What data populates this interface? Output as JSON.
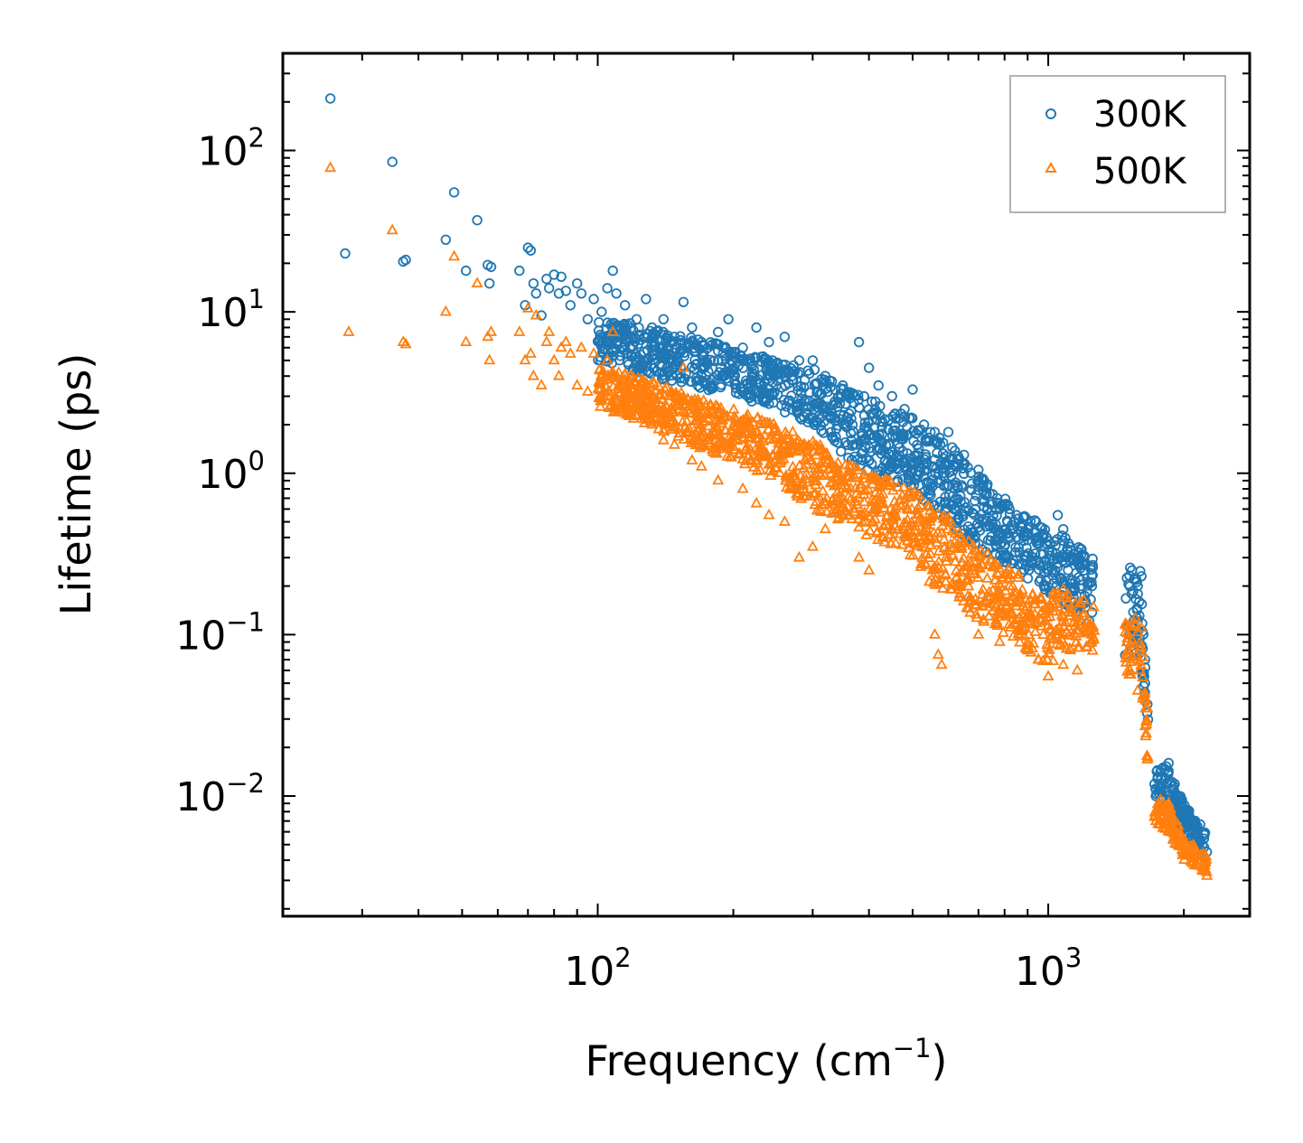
{
  "chart_data": {
    "type": "scatter",
    "x_scale": "log",
    "y_scale": "log",
    "xlim": [
      20,
      2800
    ],
    "ylim": [
      0.0018,
      400
    ],
    "xlabel": "Frequency (cm",
    "xlabel_sup": "−1",
    "xlabel_end": ")",
    "ylabel": "Lifetime (ps)",
    "x_ticks": [
      {
        "value": 100,
        "base": "10",
        "exp": "2"
      },
      {
        "value": 1000,
        "base": "10",
        "exp": "3"
      }
    ],
    "y_ticks": [
      {
        "value": 0.01,
        "base": "10",
        "exp": "−2"
      },
      {
        "value": 0.1,
        "base": "10",
        "exp": "−1"
      },
      {
        "value": 1,
        "base": "10",
        "exp": "0"
      },
      {
        "value": 10,
        "base": "10",
        "exp": "1"
      },
      {
        "value": 100,
        "base": "10",
        "exp": "2"
      }
    ],
    "legend_position": "top-right",
    "series": [
      {
        "name": "300K",
        "marker": "circle",
        "color": "#1f77b4",
        "points": [
          [
            25.5,
            210
          ],
          [
            27.5,
            23
          ],
          [
            35,
            85
          ],
          [
            37,
            20.5
          ],
          [
            37.5,
            21
          ],
          [
            46,
            28
          ],
          [
            48,
            55
          ],
          [
            51,
            18
          ],
          [
            54,
            37
          ],
          [
            57,
            19.5
          ],
          [
            57.5,
            15
          ],
          [
            58,
            19
          ],
          [
            67,
            18
          ],
          [
            69,
            11
          ],
          [
            70,
            25
          ],
          [
            71,
            24
          ],
          [
            72,
            15
          ],
          [
            73,
            13
          ],
          [
            75,
            9.5
          ],
          [
            77,
            16
          ],
          [
            78,
            14
          ],
          [
            80,
            17
          ],
          [
            82,
            13
          ],
          [
            83,
            16.5
          ],
          [
            85,
            13.5
          ],
          [
            87,
            11
          ],
          [
            90,
            15
          ],
          [
            92,
            13
          ],
          [
            95,
            9
          ],
          [
            98,
            12
          ],
          [
            102,
            10
          ],
          [
            105,
            14
          ],
          [
            108,
            18
          ],
          [
            110,
            13
          ],
          [
            115,
            11
          ],
          [
            118,
            8.5
          ],
          [
            122,
            9
          ],
          [
            128,
            12
          ],
          [
            132,
            8
          ],
          [
            140,
            9
          ],
          [
            148,
            7
          ],
          [
            155,
            11.5
          ],
          [
            162,
            8
          ],
          [
            170,
            6.5
          ],
          [
            185,
            7.5
          ],
          [
            195,
            9
          ],
          [
            210,
            6
          ],
          [
            225,
            8
          ],
          [
            240,
            6.5
          ],
          [
            260,
            7
          ],
          [
            280,
            5
          ],
          [
            300,
            5
          ],
          [
            320,
            4
          ],
          [
            350,
            3.5
          ],
          [
            380,
            6.5
          ],
          [
            400,
            4.5
          ],
          [
            420,
            3.5
          ],
          [
            450,
            3
          ],
          [
            480,
            2.5
          ],
          [
            500,
            3.3
          ],
          [
            530,
            2
          ],
          [
            560,
            1.8
          ],
          [
            600,
            1.8
          ],
          [
            650,
            1.3
          ],
          [
            700,
            1.05
          ],
          [
            720,
            0.9
          ],
          [
            780,
            0.65
          ],
          [
            820,
            0.6
          ],
          [
            850,
            0.55
          ],
          [
            900,
            0.45
          ],
          [
            950,
            0.4
          ],
          [
            1000,
            0.38
          ],
          [
            1050,
            0.55
          ],
          [
            1080,
            0.45
          ],
          [
            1120,
            0.35
          ],
          [
            1160,
            0.3
          ],
          [
            1200,
            0.25
          ],
          [
            1250,
            0.2
          ],
          [
            1520,
            0.26
          ],
          [
            1550,
            0.22
          ],
          [
            1580,
            0.2
          ],
          [
            1610,
            0.23
          ],
          [
            1640,
            0.07
          ],
          [
            1660,
            0.037
          ],
          [
            1750,
            0.013
          ],
          [
            1800,
            0.015
          ],
          [
            1850,
            0.016
          ],
          [
            1900,
            0.011
          ],
          [
            2000,
            0.0075
          ],
          [
            2100,
            0.007
          ],
          [
            2200,
            0.005
          ],
          [
            2250,
            0.0045
          ]
        ],
        "band": [
          [
            100,
            5,
            9
          ],
          [
            130,
            4,
            8
          ],
          [
            160,
            3.5,
            7
          ],
          [
            200,
            3,
            6
          ],
          [
            250,
            2.5,
            5
          ],
          [
            300,
            2,
            4.5
          ],
          [
            350,
            1.3,
            3.5
          ],
          [
            400,
            1,
            3
          ],
          [
            450,
            0.9,
            2.5
          ],
          [
            500,
            0.8,
            2.2
          ],
          [
            550,
            0.6,
            1.8
          ],
          [
            600,
            0.5,
            1.6
          ],
          [
            650,
            0.4,
            1.2
          ],
          [
            700,
            0.35,
            1
          ],
          [
            750,
            0.3,
            0.8
          ],
          [
            800,
            0.28,
            0.7
          ],
          [
            850,
            0.25,
            0.6
          ],
          [
            900,
            0.22,
            0.55
          ],
          [
            950,
            0.2,
            0.5
          ],
          [
            1000,
            0.18,
            0.45
          ],
          [
            1100,
            0.15,
            0.4
          ],
          [
            1200,
            0.12,
            0.33
          ],
          [
            1250,
            0.1,
            0.3
          ],
          [
            1500,
            0.07,
            0.25
          ],
          [
            1600,
            0.08,
            0.25
          ],
          [
            1700,
            0.01,
            0.015
          ],
          [
            1850,
            0.009,
            0.016
          ],
          [
            2000,
            0.006,
            0.009
          ],
          [
            2250,
            0.004,
            0.006
          ]
        ]
      },
      {
        "name": "500K",
        "marker": "triangle",
        "color": "#ff7f0e",
        "points": [
          [
            25.5,
            78
          ],
          [
            28,
            7.5
          ],
          [
            35,
            32
          ],
          [
            37,
            6.5
          ],
          [
            37.5,
            6.3
          ],
          [
            46,
            10
          ],
          [
            48,
            22
          ],
          [
            51,
            6.5
          ],
          [
            54,
            15
          ],
          [
            57,
            7
          ],
          [
            57.5,
            5
          ],
          [
            58,
            7.5
          ],
          [
            67,
            7.5
          ],
          [
            69,
            5
          ],
          [
            70,
            10.5
          ],
          [
            71,
            5.5
          ],
          [
            72,
            4
          ],
          [
            73,
            9.5
          ],
          [
            75,
            3.5
          ],
          [
            77,
            6.5
          ],
          [
            78,
            7.5
          ],
          [
            80,
            5
          ],
          [
            82,
            4
          ],
          [
            83,
            6
          ],
          [
            85,
            6.5
          ],
          [
            87,
            5.5
          ],
          [
            90,
            3.5
          ],
          [
            92,
            6
          ],
          [
            95,
            3.2
          ],
          [
            98,
            5.5
          ],
          [
            102,
            3
          ],
          [
            105,
            5
          ],
          [
            108,
            7.5
          ],
          [
            110,
            2.5
          ],
          [
            115,
            3.8
          ],
          [
            118,
            4
          ],
          [
            122,
            2.8
          ],
          [
            128,
            2.5
          ],
          [
            132,
            2
          ],
          [
            140,
            1.6
          ],
          [
            148,
            1.5
          ],
          [
            155,
            4.5
          ],
          [
            162,
            1.2
          ],
          [
            170,
            1.1
          ],
          [
            185,
            0.9
          ],
          [
            195,
            1.5
          ],
          [
            210,
            0.8
          ],
          [
            225,
            0.65
          ],
          [
            240,
            0.55
          ],
          [
            260,
            0.5
          ],
          [
            280,
            0.3
          ],
          [
            300,
            0.35
          ],
          [
            320,
            0.45
          ],
          [
            350,
            0.7
          ],
          [
            380,
            0.3
          ],
          [
            400,
            0.25
          ],
          [
            450,
            0.45
          ],
          [
            500,
            0.4
          ],
          [
            530,
            0.4
          ],
          [
            560,
            0.1
          ],
          [
            570,
            0.075
          ],
          [
            580,
            0.065
          ],
          [
            600,
            0.3
          ],
          [
            650,
            0.25
          ],
          [
            700,
            0.1
          ],
          [
            720,
            0.12
          ],
          [
            780,
            0.09
          ],
          [
            820,
            0.2
          ],
          [
            850,
            0.15
          ],
          [
            900,
            0.08
          ],
          [
            950,
            0.07
          ],
          [
            1000,
            0.055
          ],
          [
            1050,
            0.18
          ],
          [
            1080,
            0.065
          ],
          [
            1120,
            0.08
          ],
          [
            1160,
            0.06
          ],
          [
            1200,
            0.11
          ],
          [
            1250,
            0.1
          ],
          [
            1520,
            0.06
          ],
          [
            1550,
            0.07
          ],
          [
            1580,
            0.045
          ],
          [
            1610,
            0.11
          ],
          [
            1640,
            0.04
          ],
          [
            1660,
            0.035
          ],
          [
            1750,
            0.0085
          ],
          [
            1800,
            0.0075
          ],
          [
            1850,
            0.009
          ],
          [
            1900,
            0.0055
          ],
          [
            2000,
            0.0045
          ],
          [
            2100,
            0.0042
          ],
          [
            2200,
            0.0035
          ],
          [
            2250,
            0.0032
          ]
        ],
        "band": [
          [
            100,
            2.5,
            4.5
          ],
          [
            130,
            2,
            3.8
          ],
          [
            160,
            1.5,
            3
          ],
          [
            200,
            1.2,
            2.5
          ],
          [
            250,
            0.9,
            2
          ],
          [
            300,
            0.6,
            1.6
          ],
          [
            350,
            0.5,
            1.2
          ],
          [
            400,
            0.4,
            1
          ],
          [
            450,
            0.35,
            0.9
          ],
          [
            500,
            0.3,
            0.8
          ],
          [
            550,
            0.2,
            0.6
          ],
          [
            600,
            0.18,
            0.55
          ],
          [
            650,
            0.15,
            0.4
          ],
          [
            700,
            0.12,
            0.35
          ],
          [
            750,
            0.12,
            0.3
          ],
          [
            800,
            0.1,
            0.28
          ],
          [
            850,
            0.09,
            0.25
          ],
          [
            900,
            0.08,
            0.22
          ],
          [
            950,
            0.07,
            0.2
          ],
          [
            1000,
            0.06,
            0.18
          ],
          [
            1100,
            0.08,
            0.2
          ],
          [
            1200,
            0.08,
            0.17
          ],
          [
            1250,
            0.08,
            0.15
          ],
          [
            1500,
            0.05,
            0.12
          ],
          [
            1600,
            0.06,
            0.13
          ],
          [
            1700,
            0.007,
            0.01
          ],
          [
            1850,
            0.006,
            0.009
          ],
          [
            2000,
            0.004,
            0.0055
          ],
          [
            2250,
            0.0033,
            0.0045
          ]
        ]
      }
    ]
  }
}
